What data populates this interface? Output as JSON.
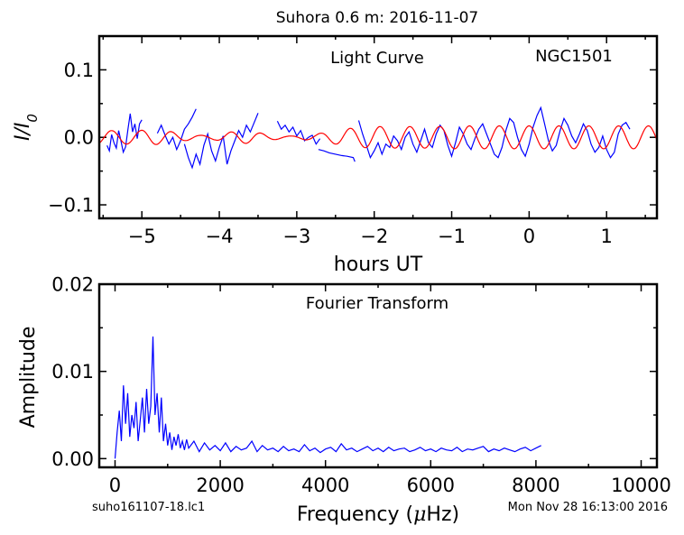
{
  "figure": {
    "title": "Suhora 0.6 m:  2016-11-07",
    "footer_left": "suho161107-18.lc1",
    "footer_right": "Mon Nov 28 16:13:00 2016"
  },
  "colors": {
    "data": "#0000ff",
    "model": "#ff0000",
    "axes": "#000000"
  },
  "chart_data": [
    {
      "type": "line",
      "name": "light-curve",
      "title": "Light Curve",
      "annotation": "NGC1501",
      "xlabel": "hours UT",
      "ylabel": "I/I0",
      "xlim": [
        -5.55,
        1.65
      ],
      "ylim": [
        -0.12,
        0.15
      ],
      "xticks": [
        -5,
        -4,
        -3,
        -2,
        -1,
        0,
        1
      ],
      "xtick_labels": [
        "−5",
        "−4",
        "−3",
        "−2",
        "−1",
        "0",
        "1"
      ],
      "yticks": [
        -0.1,
        0.0,
        0.1
      ],
      "ytick_labels": [
        "−0.1",
        "0.0",
        "0.1"
      ],
      "grid": false,
      "series": [
        {
          "role": "data",
          "segments": [
            {
              "x": [
                -5.45,
                -5.42,
                -5.39,
                -5.36,
                -5.33,
                -5.3,
                -5.27,
                -5.24,
                -5.21,
                -5.18,
                -5.15,
                -5.12,
                -5.09,
                -5.06,
                -5.03,
                -5.0
              ],
              "y": [
                -0.012,
                -0.02,
                0.004,
                -0.008,
                -0.016,
                0.01,
                -0.005,
                -0.022,
                -0.014,
                0.012,
                0.035,
                0.008,
                0.02,
                -0.002,
                0.02,
                0.026
              ]
            },
            {
              "x": [
                -4.8,
                -4.75,
                -4.7,
                -4.65,
                -4.6,
                -4.55,
                -4.5,
                -4.45,
                -4.4,
                -4.35,
                -4.3
              ],
              "y": [
                0.006,
                0.018,
                0.003,
                -0.01,
                0.0,
                -0.018,
                -0.005,
                0.012,
                0.02,
                0.03,
                0.042
              ]
            },
            {
              "x": [
                -4.45,
                -4.4,
                -4.35,
                -4.3,
                -4.25,
                -4.2,
                -4.15,
                -4.1,
                -4.05,
                -4.0,
                -3.95,
                -3.9,
                -3.85,
                -3.8,
                -3.75,
                -3.7,
                -3.65,
                -3.6,
                -3.55,
                -3.5
              ],
              "y": [
                -0.01,
                -0.03,
                -0.045,
                -0.025,
                -0.04,
                -0.012,
                0.005,
                -0.02,
                -0.035,
                -0.015,
                0.002,
                -0.04,
                -0.02,
                -0.005,
                0.01,
                0.0,
                0.018,
                0.008,
                0.022,
                0.036
              ]
            },
            {
              "x": [
                -3.25,
                -3.2,
                -3.15,
                -3.1,
                -3.05,
                -3.0,
                -2.95,
                -2.9,
                -2.85,
                -2.8,
                -2.75,
                -2.7
              ],
              "y": [
                0.024,
                0.012,
                0.018,
                0.008,
                0.015,
                0.002,
                0.01,
                -0.005,
                0.0,
                0.003,
                -0.01,
                -0.002
              ]
            },
            {
              "x": [
                -2.72,
                -2.65,
                -2.58,
                -2.5,
                -2.42,
                -2.35,
                -2.27,
                -2.25
              ],
              "y": [
                -0.018,
                -0.02,
                -0.023,
                -0.025,
                -0.027,
                -0.028,
                -0.03,
                -0.036
              ]
            },
            {
              "x": [
                -2.2,
                -2.15,
                -2.1,
                -2.05,
                -2.0,
                -1.95,
                -1.9,
                -1.85,
                -1.8,
                -1.75,
                -1.7,
                -1.65,
                -1.6,
                -1.55,
                -1.5,
                -1.45,
                -1.4,
                -1.35,
                -1.3,
                -1.25,
                -1.2,
                -1.15,
                -1.1,
                -1.05,
                -1.0,
                -0.95,
                -0.9,
                -0.85,
                -0.8,
                -0.75,
                -0.7,
                -0.65,
                -0.6,
                -0.55,
                -0.5,
                -0.45,
                -0.4,
                -0.35,
                -0.3,
                -0.25,
                -0.2,
                -0.15,
                -0.1,
                -0.05,
                0.0,
                0.05,
                0.1,
                0.15,
                0.2,
                0.25,
                0.3,
                0.35,
                0.4,
                0.45,
                0.5,
                0.55,
                0.6,
                0.65,
                0.7,
                0.75,
                0.8,
                0.85,
                0.9,
                0.95,
                1.0,
                1.05,
                1.1,
                1.15,
                1.2,
                1.25,
                1.3
              ],
              "y": [
                0.025,
                0.005,
                -0.012,
                -0.03,
                -0.02,
                -0.008,
                -0.025,
                -0.01,
                -0.015,
                0.002,
                -0.005,
                -0.018,
                0.0,
                0.008,
                -0.01,
                -0.022,
                -0.005,
                0.012,
                -0.008,
                -0.015,
                0.005,
                0.018,
                0.01,
                -0.012,
                -0.028,
                -0.008,
                0.015,
                0.005,
                -0.01,
                -0.018,
                -0.002,
                0.012,
                0.02,
                0.005,
                -0.01,
                -0.025,
                -0.03,
                -0.015,
                0.01,
                0.028,
                0.022,
                0.0,
                -0.018,
                -0.028,
                -0.01,
                0.015,
                0.032,
                0.044,
                0.02,
                -0.005,
                -0.02,
                -0.012,
                0.01,
                0.028,
                0.018,
                0.002,
                -0.008,
                0.005,
                0.02,
                0.01,
                -0.01,
                -0.022,
                -0.015,
                0.002,
                -0.018,
                -0.03,
                -0.022,
                0.005,
                0.018,
                0.022,
                0.012
              ]
            }
          ]
        },
        {
          "role": "model",
          "period_hours": 0.385,
          "x": [
            -5.55,
            -5.45,
            -5.35,
            -5.25,
            -5.15,
            -5.05,
            -4.95,
            -4.85,
            -4.75,
            -4.65,
            -4.55,
            -4.45,
            -4.35,
            -4.25,
            -4.15,
            -4.05,
            -3.95,
            -3.85,
            -3.75,
            -3.65,
            -3.55,
            -3.45,
            -3.35,
            -3.25,
            -3.15,
            -3.05,
            -2.95,
            -2.85,
            -2.75,
            -2.65,
            -2.55,
            -2.45,
            -2.35,
            -2.25,
            -2.15,
            -2.05,
            -1.95,
            -1.85,
            -1.75,
            -1.65,
            -1.55,
            -1.45,
            -1.35,
            -1.25,
            -1.15,
            -1.05,
            -0.95,
            -0.85,
            -0.75,
            -0.65,
            -0.55,
            -0.45,
            -0.35,
            -0.25,
            -0.15,
            -0.05,
            0.05,
            0.15,
            0.25,
            0.35,
            0.45,
            0.55,
            0.65,
            0.75,
            0.85,
            0.95,
            1.05,
            1.15,
            1.25,
            1.35,
            1.45,
            1.55,
            1.65
          ],
          "amplitude": [
            0.01,
            0.01,
            0.01,
            0.01,
            0.01,
            0.01,
            0.011,
            0.011,
            0.01,
            0.009,
            0.007,
            0.005,
            0.004,
            0.003,
            0.003,
            0.004,
            0.006,
            0.008,
            0.009,
            0.009,
            0.008,
            0.006,
            0.004,
            0.003,
            0.002,
            0.002,
            0.003,
            0.004,
            0.005,
            0.007,
            0.009,
            0.011,
            0.013,
            0.014,
            0.015,
            0.016,
            0.016,
            0.016,
            0.016,
            0.016,
            0.016,
            0.016,
            0.016,
            0.016,
            0.016,
            0.017,
            0.017,
            0.017,
            0.017,
            0.017,
            0.017,
            0.017,
            0.017,
            0.017,
            0.017,
            0.017,
            0.017,
            0.017,
            0.017,
            0.017,
            0.017,
            0.017,
            0.017,
            0.017,
            0.017,
            0.017,
            0.017,
            0.017,
            0.017,
            0.017,
            0.017,
            0.017,
            0.017
          ]
        }
      ]
    },
    {
      "type": "line",
      "name": "fourier-transform",
      "title": "Fourier Transform",
      "xlabel": "Frequency (μHz)",
      "ylabel": "Amplitude",
      "xlim": [
        -300,
        10300
      ],
      "ylim": [
        -0.001,
        0.02
      ],
      "xticks": [
        0,
        2000,
        4000,
        6000,
        8000,
        10000
      ],
      "xtick_labels": [
        "0",
        "2000",
        "4000",
        "6000",
        "8000",
        "10000"
      ],
      "yticks": [
        0.0,
        0.01,
        0.02
      ],
      "ytick_labels": [
        "0.00",
        "0.01",
        "0.02"
      ],
      "grid": false,
      "series": [
        {
          "role": "data",
          "x": [
            0,
            40,
            80,
            120,
            160,
            200,
            240,
            280,
            320,
            360,
            400,
            440,
            480,
            520,
            560,
            600,
            640,
            680,
            720,
            760,
            800,
            840,
            880,
            920,
            960,
            1000,
            1040,
            1080,
            1120,
            1160,
            1200,
            1240,
            1280,
            1320,
            1360,
            1400,
            1500,
            1600,
            1700,
            1800,
            1900,
            2000,
            2100,
            2200,
            2300,
            2400,
            2500,
            2600,
            2700,
            2800,
            2900,
            3000,
            3100,
            3200,
            3300,
            3400,
            3500,
            3600,
            3700,
            3800,
            3900,
            4000,
            4100,
            4200,
            4300,
            4400,
            4500,
            4600,
            4700,
            4800,
            4900,
            5000,
            5100,
            5200,
            5300,
            5400,
            5500,
            5600,
            5700,
            5800,
            5900,
            6000,
            6100,
            6200,
            6300,
            6400,
            6500,
            6600,
            6700,
            6800,
            6900,
            7000,
            7100,
            7200,
            7300,
            7400,
            7500,
            7600,
            7700,
            7800,
            7900,
            8000,
            8100
          ],
          "y": [
            0.0,
            0.003,
            0.0055,
            0.002,
            0.0084,
            0.004,
            0.0075,
            0.0025,
            0.005,
            0.0035,
            0.0065,
            0.002,
            0.0045,
            0.007,
            0.003,
            0.008,
            0.004,
            0.006,
            0.014,
            0.005,
            0.0075,
            0.003,
            0.007,
            0.002,
            0.004,
            0.0015,
            0.003,
            0.001,
            0.0025,
            0.0015,
            0.0028,
            0.0012,
            0.002,
            0.001,
            0.0022,
            0.0012,
            0.002,
            0.0008,
            0.0018,
            0.001,
            0.0015,
            0.0009,
            0.0018,
            0.0008,
            0.0014,
            0.001,
            0.0012,
            0.002,
            0.0008,
            0.0015,
            0.001,
            0.0012,
            0.0008,
            0.0014,
            0.0009,
            0.0011,
            0.0008,
            0.0016,
            0.0009,
            0.0012,
            0.0007,
            0.0011,
            0.0013,
            0.0008,
            0.0017,
            0.001,
            0.0012,
            0.0008,
            0.0011,
            0.0014,
            0.0009,
            0.0012,
            0.0008,
            0.0013,
            0.0009,
            0.0011,
            0.0012,
            0.0008,
            0.001,
            0.0013,
            0.0009,
            0.0011,
            0.0008,
            0.0012,
            0.001,
            0.0009,
            0.0013,
            0.0008,
            0.0011,
            0.001,
            0.0012,
            0.0014,
            0.0008,
            0.0011,
            0.0009,
            0.0012,
            0.001,
            0.0008,
            0.0011,
            0.0013,
            0.0009,
            0.0012,
            0.0015
          ]
        }
      ]
    }
  ]
}
